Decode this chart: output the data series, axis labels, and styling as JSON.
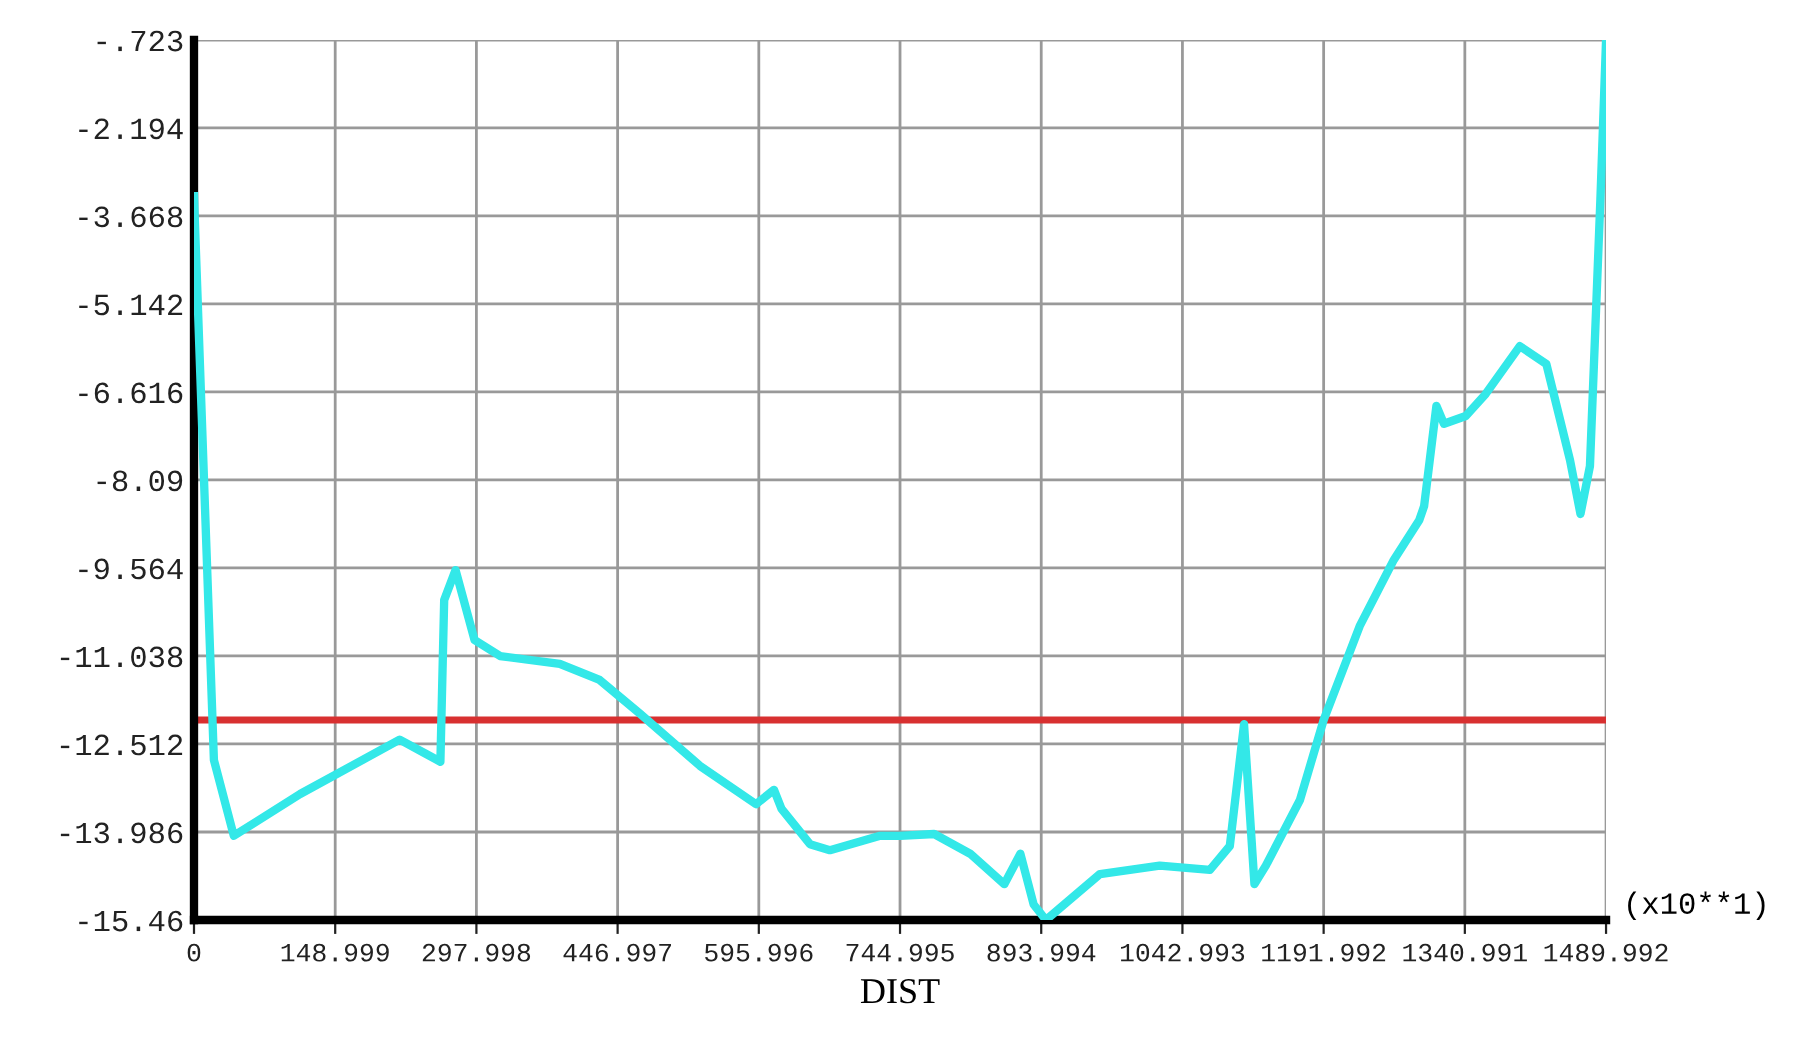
{
  "chart_data": {
    "type": "line",
    "xlabel": "DIST",
    "annotations": [
      "(x10**1)"
    ],
    "x": [
      0,
      21,
      42,
      112,
      217,
      245,
      260,
      264,
      276,
      296,
      323,
      386,
      428,
      471,
      534,
      593,
      612,
      620,
      650,
      671,
      724,
      745,
      781,
      819,
      855,
      872,
      886,
      899,
      956,
      1019,
      1072,
      1093,
      1108,
      1119,
      1131,
      1167,
      1192,
      1230,
      1266,
      1293,
      1298,
      1311,
      1319,
      1342,
      1363,
      1399,
      1427,
      1452,
      1463,
      1473,
      1484,
      1489.99
    ],
    "series": [
      {
        "color": "#33e8e8",
        "values": [
          -3.34,
          -12.78,
          -14.05,
          -13.35,
          -12.44,
          -12.68,
          -12.81,
          -10.1,
          -9.6,
          -10.77,
          -11.04,
          -11.17,
          -11.44,
          -12.01,
          -12.88,
          -13.52,
          -13.28,
          -13.6,
          -14.19,
          -14.29,
          -14.05,
          -14.05,
          -14.02,
          -14.35,
          -14.86,
          -14.35,
          -15.2,
          -15.46,
          -14.69,
          -14.55,
          -14.62,
          -14.22,
          -12.18,
          -14.86,
          -14.55,
          -13.45,
          -12.11,
          -10.54,
          -9.43,
          -8.76,
          -8.53,
          -6.85,
          -7.15,
          -7.02,
          -6.65,
          -5.85,
          -6.15,
          -7.76,
          -8.66,
          -7.86,
          -3.4,
          -0.73
        ]
      }
    ],
    "xlim": [
      0,
      1489.992
    ],
    "ylim": [
      -15.46,
      -0.723
    ],
    "xticks": [
      0,
      148.999,
      297.998,
      446.997,
      595.996,
      744.995,
      893.994,
      1042.993,
      1191.992,
      1340.991,
      1489.992
    ],
    "yticks": [
      {
        "value": -0.723,
        "label": "-.723"
      },
      {
        "value": -2.194,
        "label": "-2.194"
      },
      {
        "value": -3.668,
        "label": "-3.668"
      },
      {
        "value": -5.142,
        "label": "-5.142"
      },
      {
        "value": -6.616,
        "label": "-6.616"
      },
      {
        "value": -8.09,
        "label": "-8.09"
      },
      {
        "value": -9.564,
        "label": "-9.564"
      },
      {
        "value": -11.038,
        "label": "-11.038"
      },
      {
        "value": -12.512,
        "label": "-12.512"
      },
      {
        "value": -13.986,
        "label": "-13.986"
      },
      {
        "value": -15.46,
        "label": "-15.46"
      }
    ],
    "ref_lines": [
      {
        "axis": "y",
        "value": -12.11,
        "color": "#d83030"
      }
    ],
    "grid": true,
    "line_style": "solid"
  }
}
